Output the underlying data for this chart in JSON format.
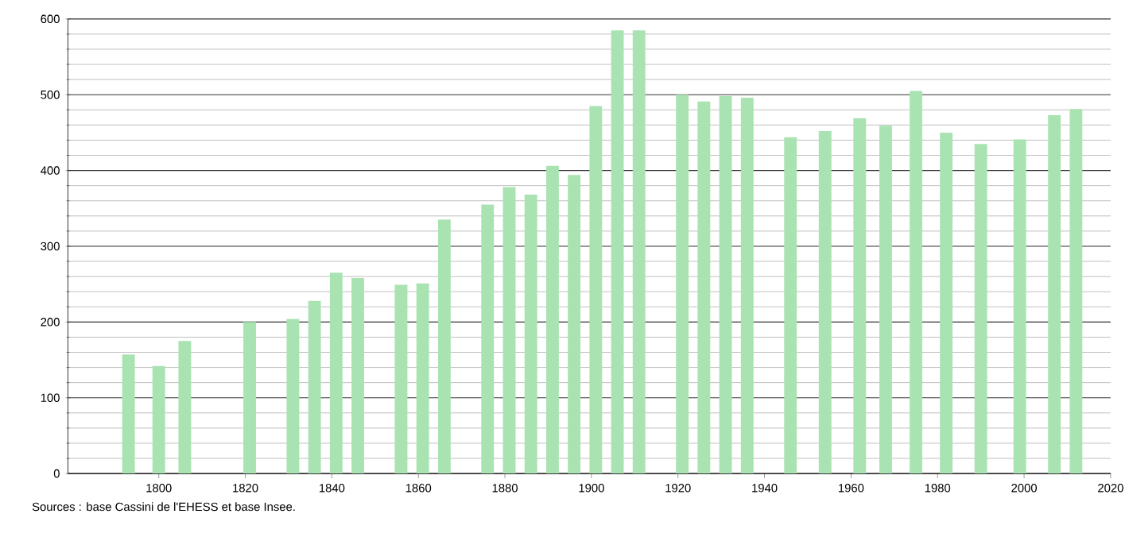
{
  "chart_data": {
    "type": "bar",
    "x": [
      1793,
      1800,
      1806,
      1821,
      1831,
      1836,
      1841,
      1846,
      1856,
      1861,
      1866,
      1876,
      1881,
      1886,
      1891,
      1896,
      1901,
      1906,
      1911,
      1921,
      1926,
      1931,
      1936,
      1946,
      1954,
      1962,
      1968,
      1975,
      1982,
      1990,
      1999,
      2007,
      2012
    ],
    "values": [
      157,
      142,
      175,
      200,
      204,
      228,
      265,
      258,
      249,
      251,
      335,
      355,
      378,
      368,
      406,
      394,
      485,
      585,
      585,
      500,
      491,
      498,
      496,
      444,
      452,
      469,
      459,
      505,
      450,
      435,
      441,
      473,
      481
    ],
    "color": "#aae3b2",
    "xlim": [
      1779,
      2020
    ],
    "xticks": [
      1800,
      1820,
      1840,
      1860,
      1880,
      1900,
      1920,
      1940,
      1960,
      1980,
      2000,
      2020
    ],
    "ylim": [
      0,
      600
    ],
    "yticks": [
      0,
      100,
      200,
      300,
      400,
      500,
      600
    ],
    "grid": "y",
    "annotations": [
      "Sources : base Cassini de l'EHESS et base Insee."
    ]
  }
}
